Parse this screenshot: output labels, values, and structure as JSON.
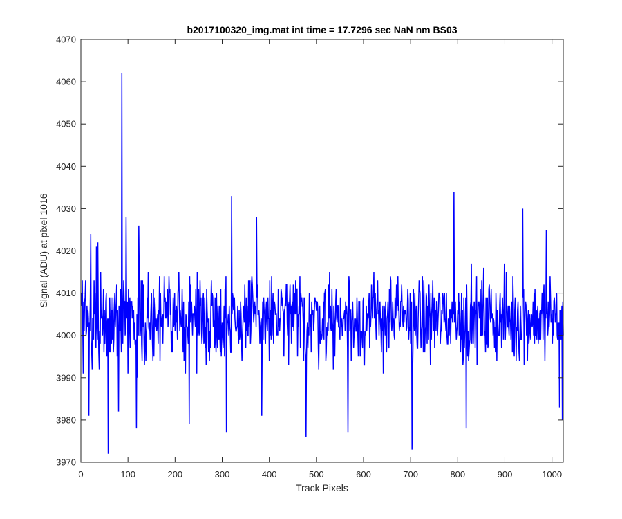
{
  "chart_data": {
    "type": "line",
    "title": "b2017100320_img.mat int time = 17.7296 sec  NaN nm BS03",
    "xlabel": "Track Pixels",
    "ylabel": "Signal (ADU) at pixel 1016",
    "xlim": [
      0,
      1024
    ],
    "ylim": [
      3970,
      4070
    ],
    "xticks": [
      0,
      100,
      200,
      300,
      400,
      500,
      600,
      700,
      800,
      900,
      1000
    ],
    "yticks": [
      3970,
      3980,
      3990,
      4000,
      4010,
      4020,
      4030,
      4040,
      4050,
      4060,
      4070
    ],
    "grid": false,
    "line_color": "#0000ff",
    "series": [
      {
        "x_start": 1,
        "x_step": 1,
        "noise_baseline": 4000,
        "noise_typical_range": [
          3985,
          4017
        ],
        "sample_count": 1024,
        "peaks": [
          {
            "x": 5,
            "y": 3991
          },
          {
            "x": 10,
            "y": 4013
          },
          {
            "x": 17,
            "y": 3981
          },
          {
            "x": 21,
            "y": 4024
          },
          {
            "x": 33,
            "y": 4021
          },
          {
            "x": 36,
            "y": 4022
          },
          {
            "x": 58,
            "y": 3972
          },
          {
            "x": 80,
            "y": 3982
          },
          {
            "x": 87,
            "y": 4062
          },
          {
            "x": 96,
            "y": 4028
          },
          {
            "x": 118,
            "y": 3978
          },
          {
            "x": 123,
            "y": 4026
          },
          {
            "x": 230,
            "y": 3979
          },
          {
            "x": 309,
            "y": 3977
          },
          {
            "x": 320,
            "y": 4033
          },
          {
            "x": 373,
            "y": 4028
          },
          {
            "x": 384,
            "y": 3981
          },
          {
            "x": 478,
            "y": 3976
          },
          {
            "x": 567,
            "y": 3977
          },
          {
            "x": 703,
            "y": 3973
          },
          {
            "x": 792,
            "y": 4034
          },
          {
            "x": 818,
            "y": 3978
          },
          {
            "x": 938,
            "y": 4030
          },
          {
            "x": 988,
            "y": 4025
          },
          {
            "x": 1016,
            "y": 3983
          },
          {
            "x": 1022,
            "y": 3980
          },
          {
            "x": 1024,
            "y": 4000
          }
        ]
      }
    ]
  }
}
